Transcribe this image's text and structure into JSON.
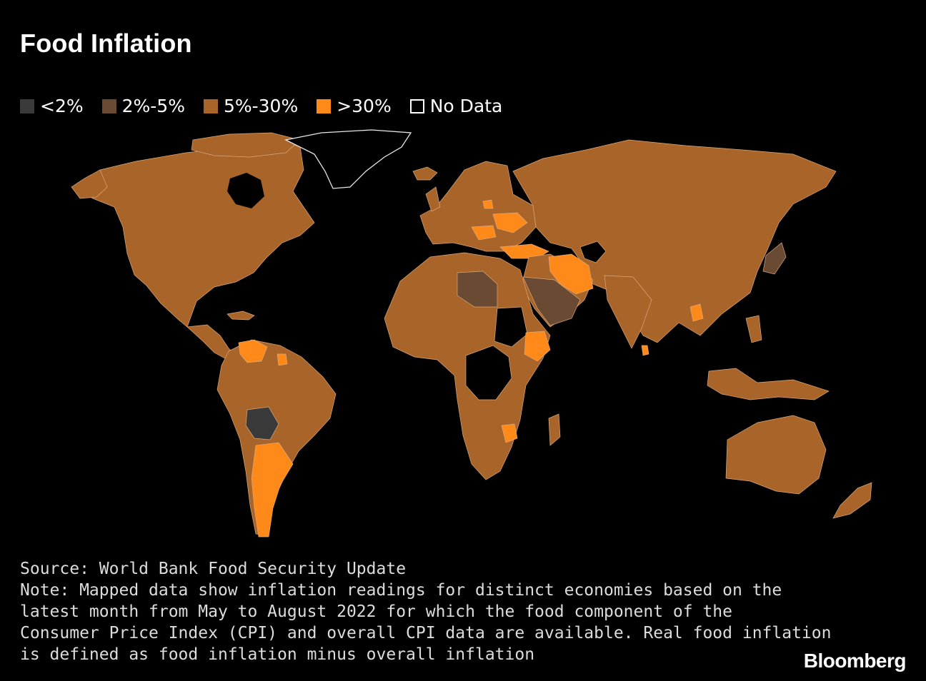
{
  "title": "Food Inflation",
  "legend": [
    {
      "label": "<2%",
      "color": "#3a3a3a"
    },
    {
      "label": "2%-5%",
      "color": "#6b4a33"
    },
    {
      "label": "5%-30%",
      "color": "#a9642a"
    },
    {
      "label": ">30%",
      "color": "#ff8a1a"
    },
    {
      "label": "No Data",
      "color": "#000000"
    }
  ],
  "map": {
    "colors": {
      "lt2": "#3a3a3a",
      "c2to5": "#6b4a33",
      "c5to30": "#a9642a",
      "gt30": "#ff8a1a",
      "nodata": "#000000"
    }
  },
  "notes": {
    "source": "Source: World Bank Food Security Update",
    "line1": "Note: Mapped data show inflation readings for distinct economies based on the",
    "line2": "latest month from May to August 2022 for which the food component of the",
    "line3": "Consumer Price Index (CPI) and overall CPI data are available. Real food inflation",
    "line4": "is defined as food inflation minus overall inflation"
  },
  "logo": "Bloomberg"
}
